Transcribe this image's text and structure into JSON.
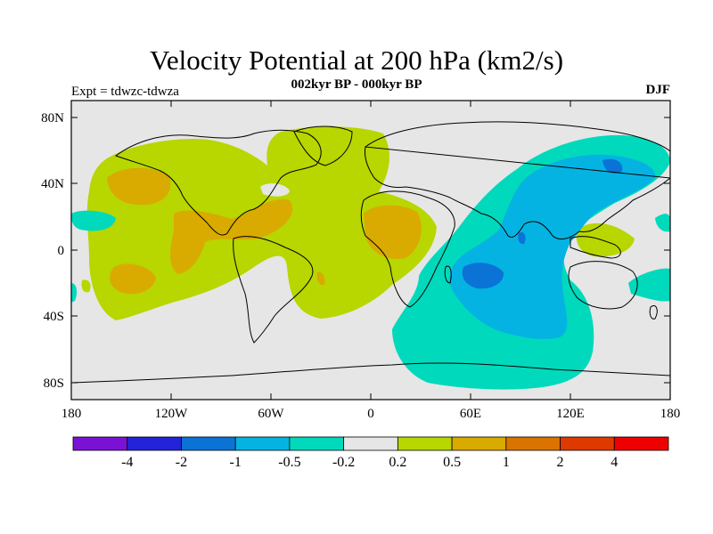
{
  "title": "Velocity Potential at 200 hPa (km2/s)",
  "subtitle": "002kyr BP - 000kyr BP",
  "experiment_label": "Expt = tdwzc-tdwza",
  "season": "DJF",
  "map": {
    "lon_range": [
      -180,
      180
    ],
    "lat_range": [
      -90,
      90
    ],
    "ocean_color": "#e6e6e6",
    "coastline_color": "#000000",
    "y_ticks": [
      "80N",
      "40N",
      "0",
      "40S",
      "80S"
    ],
    "x_ticks": [
      "180",
      "120W",
      "60W",
      "0",
      "60E",
      "120E",
      "180"
    ]
  },
  "colorbar": {
    "colors": [
      "#7a12d6",
      "#2323d8",
      "#0b73d6",
      "#04b3e2",
      "#00d9bc",
      "#e6e6e6",
      "#b8d600",
      "#d9aa00",
      "#db7300",
      "#de3a00",
      "#ee0000"
    ],
    "labels": [
      "-4",
      "-2",
      "-1",
      "-0.5",
      "-0.2",
      "0.2",
      "0.5",
      "1",
      "2",
      "4"
    ]
  }
}
